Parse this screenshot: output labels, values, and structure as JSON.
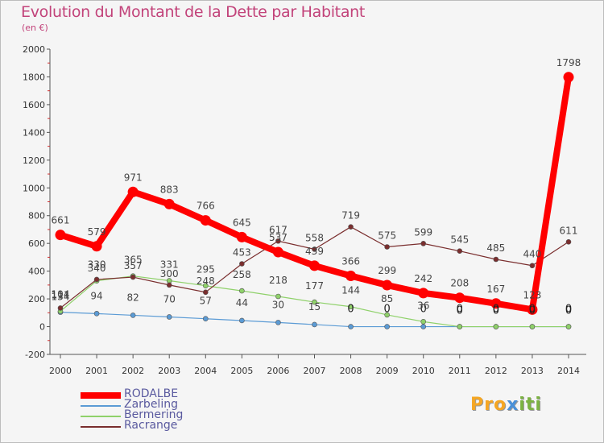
{
  "title": "Evolution du Montant de la Dette par Habitant",
  "subtitle": "(en €)",
  "logo": {
    "text": "Proxiti",
    "parts": [
      "Pro",
      "x",
      "iti"
    ]
  },
  "colors": {
    "RODALBE": "#ff0000",
    "Zarbeling": "#5b9bd5",
    "Bermering": "#8fd16a",
    "Racrange": "#7a2e2e"
  },
  "chart_data": {
    "type": "line",
    "x": [
      "2000",
      "2001",
      "2002",
      "2003",
      "2004",
      "2005",
      "2006",
      "2007",
      "2008",
      "2009",
      "2010",
      "2011",
      "2012",
      "2013",
      "2014"
    ],
    "ylim": [
      -200,
      2000
    ],
    "yticks": [
      -200,
      0,
      200,
      400,
      600,
      800,
      1000,
      1200,
      1400,
      1600,
      1800,
      2000
    ],
    "grid": false,
    "legend": "bottom-left",
    "series": [
      {
        "name": "RODALBE",
        "values": [
          661,
          579,
          971,
          883,
          766,
          645,
          537,
          439,
          366,
          299,
          242,
          208,
          167,
          123,
          1798
        ],
        "labels": [
          "661",
          "579",
          "971",
          "883",
          "766",
          "645",
          "537",
          "439",
          "366",
          "299",
          "242",
          "208",
          "167",
          "123",
          "1798"
        ]
      },
      {
        "name": "Zarbeling",
        "values": [
          104,
          94,
          82,
          70,
          57,
          44,
          30,
          15,
          0,
          0,
          0,
          0,
          0,
          0,
          0
        ],
        "labels": [
          "104",
          "94",
          "82",
          "70",
          "57",
          "44",
          "30",
          "15",
          "0",
          "0",
          "0",
          "0",
          "0",
          "0",
          "0"
        ]
      },
      {
        "name": "Bermering",
        "values": [
          111,
          330,
          365,
          331,
          295,
          258,
          218,
          177,
          144,
          85,
          36,
          0,
          0,
          0,
          0
        ],
        "labels": [
          "111",
          "330",
          "365",
          "331",
          "295",
          "258",
          "218",
          "177",
          "144",
          "85",
          "36",
          "0",
          "0",
          "0",
          "0"
        ]
      },
      {
        "name": "Racrange",
        "values": [
          134,
          340,
          357,
          300,
          248,
          453,
          617,
          558,
          719,
          575,
          599,
          545,
          485,
          440,
          611
        ],
        "labels": [
          "134",
          "340",
          "357",
          "300",
          "248",
          "453",
          "617",
          "558",
          "719",
          "575",
          "599",
          "545",
          "485",
          "440",
          "611"
        ]
      }
    ]
  }
}
